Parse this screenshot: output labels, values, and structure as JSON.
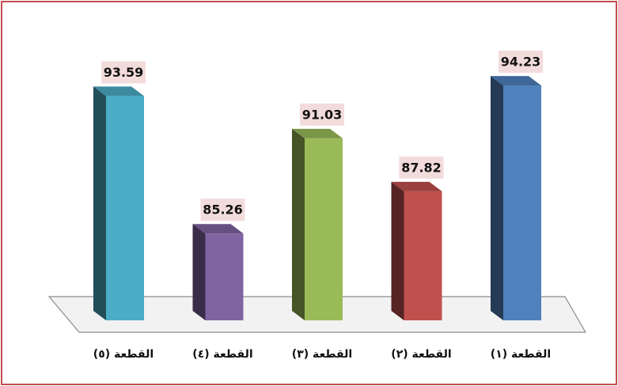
{
  "chart_data": {
    "type": "bar3d",
    "categories": [
      "القطعة (١)",
      "القطعة (٢)",
      "القطعة (٣)",
      "القطعة (٤)",
      "القطعة (٥)"
    ],
    "values": [
      94.23,
      87.82,
      91.03,
      85.26,
      93.59
    ],
    "colors": [
      "#4f81bd",
      "#c0504d",
      "#9bbb59",
      "#8064a2",
      "#4bacc6"
    ],
    "ylim": [
      80,
      95
    ],
    "x_reversed": true
  }
}
